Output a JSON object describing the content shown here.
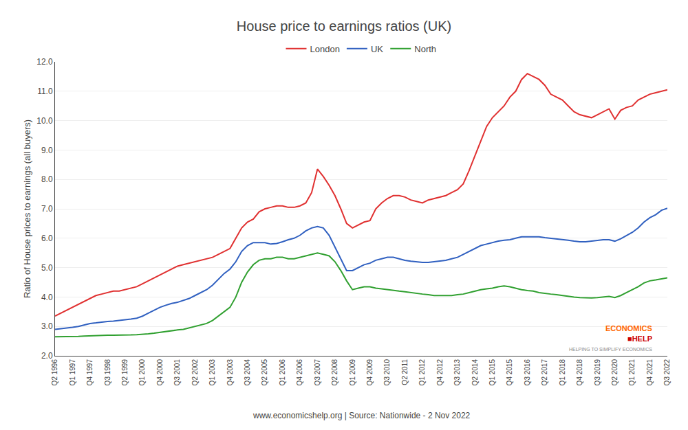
{
  "chart_data": {
    "type": "line",
    "title": "House price to earnings ratios (UK)",
    "y_label": "Ratio of House prices to earnings (all buyers)",
    "annotations": [
      {
        "text": "www.economicshelp.org | Source: Nationwide - 2 Nov 2022",
        "color": "#444444"
      },
      {
        "text": "ECONOMICS",
        "color": "#ff6600"
      },
      {
        "text": "■HELP",
        "color": "#cc0000"
      },
      {
        "text": "HELPING TO SIMPLIFY ECONOMICS",
        "color": "#888888"
      }
    ],
    "categories": [
      "Q2 1996",
      null,
      null,
      "Q1 1997",
      null,
      null,
      "Q4 1997",
      null,
      null,
      "Q3 1998",
      null,
      null,
      "Q2 1999",
      null,
      null,
      "Q1 2000",
      null,
      null,
      "Q4 2000",
      null,
      null,
      "Q3 2001",
      null,
      null,
      "Q2 2002",
      null,
      null,
      "Q1 2003",
      null,
      null,
      "Q4 2003",
      null,
      null,
      "Q3 2004",
      null,
      null,
      "Q2 2005",
      null,
      null,
      "Q1 2006",
      null,
      null,
      "Q4 2006",
      null,
      null,
      "Q3 2007",
      null,
      null,
      "Q2 2008",
      null,
      null,
      "Q1 2009",
      null,
      null,
      "Q4 2009",
      null,
      null,
      "Q3 2010",
      null,
      null,
      "Q2 2011",
      null,
      null,
      "Q1 2012",
      null,
      null,
      "Q4 2012",
      null,
      null,
      "Q3 2013",
      null,
      null,
      "Q2 2014",
      null,
      null,
      "Q1 2015",
      null,
      null,
      "Q4 2015",
      null,
      null,
      "Q3 2016",
      null,
      null,
      "Q2 2017",
      null,
      null,
      "Q1 2018",
      null,
      null,
      "Q4 2018",
      null,
      null,
      "Q3 2019",
      null,
      null,
      "Q2 2020",
      null,
      null,
      "Q1 2021",
      null,
      null,
      "Q4 2021",
      null,
      null,
      "Q3 2022"
    ],
    "series": [
      {
        "name": "London",
        "color": "#e03030",
        "values": [
          3.35,
          3.45,
          3.55,
          3.65,
          3.75,
          3.85,
          3.95,
          4.05,
          4.1,
          4.15,
          4.2,
          4.2,
          4.25,
          4.3,
          4.35,
          4.45,
          4.55,
          4.65,
          4.75,
          4.85,
          4.95,
          5.05,
          5.1,
          5.15,
          5.2,
          5.25,
          5.3,
          5.35,
          5.45,
          5.55,
          5.65,
          6.0,
          6.35,
          6.55,
          6.65,
          6.9,
          7.0,
          7.05,
          7.1,
          7.1,
          7.05,
          7.05,
          7.1,
          7.2,
          7.55,
          8.35,
          8.1,
          7.8,
          7.45,
          7.0,
          6.5,
          6.35,
          6.45,
          6.55,
          6.6,
          7.0,
          7.2,
          7.35,
          7.45,
          7.45,
          7.4,
          7.3,
          7.25,
          7.2,
          7.3,
          7.35,
          7.4,
          7.45,
          7.55,
          7.65,
          7.85,
          8.3,
          8.8,
          9.3,
          9.8,
          10.1,
          10.3,
          10.5,
          10.8,
          11.0,
          11.4,
          11.6,
          11.5,
          11.4,
          11.2,
          10.9,
          10.8,
          10.7,
          10.5,
          10.3,
          10.2,
          10.15,
          10.1,
          10.2,
          10.3,
          10.4,
          10.05,
          10.35,
          10.45,
          10.5,
          10.7,
          10.8,
          10.9,
          10.95,
          11.0,
          11.05
        ]
      },
      {
        "name": "UK",
        "color": "#3060c0",
        "values": [
          2.9,
          2.92,
          2.95,
          2.97,
          3.0,
          3.05,
          3.1,
          3.12,
          3.15,
          3.17,
          3.18,
          3.2,
          3.22,
          3.25,
          3.28,
          3.35,
          3.45,
          3.55,
          3.65,
          3.72,
          3.78,
          3.82,
          3.88,
          3.95,
          4.05,
          4.15,
          4.25,
          4.4,
          4.6,
          4.8,
          4.95,
          5.2,
          5.55,
          5.75,
          5.85,
          5.85,
          5.85,
          5.8,
          5.82,
          5.88,
          5.95,
          6.0,
          6.1,
          6.25,
          6.35,
          6.4,
          6.35,
          6.1,
          5.7,
          5.3,
          4.9,
          4.9,
          5.0,
          5.1,
          5.15,
          5.25,
          5.3,
          5.35,
          5.35,
          5.3,
          5.25,
          5.22,
          5.2,
          5.18,
          5.18,
          5.2,
          5.22,
          5.25,
          5.3,
          5.35,
          5.45,
          5.55,
          5.65,
          5.75,
          5.8,
          5.85,
          5.9,
          5.93,
          5.95,
          6.0,
          6.05,
          6.05,
          6.05,
          6.05,
          6.02,
          6.0,
          5.98,
          5.95,
          5.93,
          5.9,
          5.88,
          5.88,
          5.9,
          5.93,
          5.95,
          5.95,
          5.9,
          5.98,
          6.1,
          6.2,
          6.35,
          6.55,
          6.7,
          6.8,
          6.95,
          7.02
        ]
      },
      {
        "name": "North",
        "color": "#30a030",
        "values": [
          2.65,
          2.65,
          2.65,
          2.65,
          2.66,
          2.67,
          2.68,
          2.68,
          2.69,
          2.7,
          2.7,
          2.7,
          2.7,
          2.71,
          2.72,
          2.73,
          2.75,
          2.77,
          2.8,
          2.82,
          2.85,
          2.88,
          2.9,
          2.95,
          3.0,
          3.05,
          3.1,
          3.2,
          3.35,
          3.5,
          3.65,
          4.0,
          4.5,
          4.85,
          5.1,
          5.25,
          5.3,
          5.3,
          5.35,
          5.35,
          5.3,
          5.3,
          5.35,
          5.4,
          5.45,
          5.5,
          5.45,
          5.4,
          5.2,
          4.9,
          4.55,
          4.25,
          4.3,
          4.35,
          4.35,
          4.3,
          4.28,
          4.25,
          4.22,
          4.2,
          4.18,
          4.15,
          4.12,
          4.1,
          4.08,
          4.05,
          4.05,
          4.05,
          4.05,
          4.08,
          4.1,
          4.15,
          4.2,
          4.25,
          4.28,
          4.3,
          4.35,
          4.38,
          4.35,
          4.3,
          4.25,
          4.22,
          4.2,
          4.15,
          4.12,
          4.1,
          4.08,
          4.05,
          4.02,
          4.0,
          3.98,
          3.97,
          3.97,
          3.98,
          4.0,
          4.02,
          3.98,
          4.05,
          4.15,
          4.25,
          4.35,
          4.48,
          4.55,
          4.58,
          4.62,
          4.65
        ]
      }
    ],
    "ylim": [
      2.0,
      12.0
    ],
    "yticks": [
      {
        "value": 2.0,
        "label": "2.0"
      },
      {
        "value": 3.0,
        "label": "3.0"
      },
      {
        "value": 4.0,
        "label": "4.0"
      },
      {
        "value": 5.0,
        "label": "5.0"
      },
      {
        "value": 6.0,
        "label": "6.0"
      },
      {
        "value": 7.0,
        "label": "7.0"
      },
      {
        "value": 8.0,
        "label": "8.0"
      },
      {
        "value": 9.0,
        "label": "9.0"
      },
      {
        "value": 10.0,
        "label": "10.0"
      },
      {
        "value": 11.0,
        "label": "11.0"
      },
      {
        "value": 12.0,
        "label": "12.0"
      }
    ],
    "grid": "y",
    "legend": "top"
  }
}
